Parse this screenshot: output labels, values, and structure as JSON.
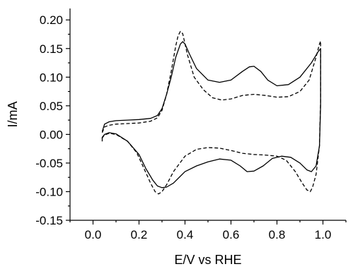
{
  "chart_data": {
    "type": "line",
    "title": "",
    "xlabel": "E/V vs RHE",
    "ylabel": "I/mA",
    "xlim": [
      -0.1,
      1.1
    ],
    "ylim": [
      -0.15,
      0.22
    ],
    "x_ticks": [
      0.0,
      0.2,
      0.4,
      0.6,
      0.8,
      1.0
    ],
    "x_tick_labels": [
      "0.0",
      "0.2",
      "0.4",
      "0.6",
      "0.8",
      "1.0"
    ],
    "y_ticks": [
      -0.15,
      -0.1,
      -0.05,
      0.0,
      0.05,
      0.1,
      0.15,
      0.2
    ],
    "y_tick_labels": [
      "-0.15",
      "-0.10",
      "-0.05",
      "0.00",
      "0.05",
      "0.10",
      "0.15",
      "0.20"
    ],
    "grid": false,
    "legend": "none",
    "series": [
      {
        "style": "solid",
        "color": "#000000",
        "x": [
          0.04,
          0.05,
          0.07,
          0.1,
          0.15,
          0.2,
          0.25,
          0.28,
          0.3,
          0.32,
          0.34,
          0.36,
          0.38,
          0.39,
          0.4,
          0.42,
          0.45,
          0.5,
          0.55,
          0.6,
          0.65,
          0.68,
          0.7,
          0.73,
          0.76,
          0.8,
          0.85,
          0.9,
          0.95,
          0.98,
          0.99,
          0.99,
          0.985,
          0.97,
          0.95,
          0.93,
          0.9,
          0.86,
          0.82,
          0.78,
          0.74,
          0.7,
          0.67,
          0.64,
          0.6,
          0.55,
          0.5,
          0.45,
          0.4,
          0.35,
          0.32,
          0.3,
          0.28,
          0.26,
          0.23,
          0.2,
          0.15,
          0.1,
          0.07,
          0.05,
          0.04,
          0.04
        ],
        "y": [
          0.005,
          0.018,
          0.022,
          0.024,
          0.025,
          0.026,
          0.028,
          0.033,
          0.045,
          0.07,
          0.1,
          0.135,
          0.158,
          0.162,
          0.158,
          0.14,
          0.115,
          0.095,
          0.091,
          0.095,
          0.11,
          0.118,
          0.119,
          0.11,
          0.095,
          0.085,
          0.087,
          0.1,
          0.125,
          0.145,
          0.15,
          0.05,
          -0.02,
          -0.055,
          -0.065,
          -0.062,
          -0.05,
          -0.04,
          -0.038,
          -0.042,
          -0.055,
          -0.064,
          -0.065,
          -0.055,
          -0.045,
          -0.043,
          -0.048,
          -0.055,
          -0.065,
          -0.085,
          -0.092,
          -0.093,
          -0.09,
          -0.08,
          -0.06,
          -0.035,
          -0.012,
          0.001,
          0.003,
          0.0,
          -0.005,
          -0.012
        ]
      },
      {
        "style": "dashed",
        "color": "#000000",
        "x": [
          0.04,
          0.05,
          0.07,
          0.1,
          0.15,
          0.2,
          0.25,
          0.28,
          0.3,
          0.32,
          0.34,
          0.36,
          0.37,
          0.38,
          0.39,
          0.41,
          0.44,
          0.48,
          0.52,
          0.56,
          0.6,
          0.65,
          0.7,
          0.75,
          0.8,
          0.85,
          0.9,
          0.94,
          0.97,
          0.985,
          0.99,
          0.99,
          0.985,
          0.97,
          0.955,
          0.945,
          0.93,
          0.91,
          0.88,
          0.84,
          0.8,
          0.75,
          0.7,
          0.65,
          0.6,
          0.55,
          0.5,
          0.45,
          0.4,
          0.35,
          0.32,
          0.3,
          0.285,
          0.27,
          0.25,
          0.22,
          0.19,
          0.15,
          0.1,
          0.07,
          0.05,
          0.04,
          0.04
        ],
        "y": [
          0.003,
          0.013,
          0.016,
          0.018,
          0.019,
          0.02,
          0.023,
          0.029,
          0.042,
          0.07,
          0.11,
          0.155,
          0.172,
          0.18,
          0.176,
          0.14,
          0.1,
          0.078,
          0.064,
          0.06,
          0.062,
          0.068,
          0.07,
          0.068,
          0.065,
          0.066,
          0.075,
          0.095,
          0.135,
          0.158,
          0.163,
          0.06,
          -0.02,
          -0.07,
          -0.092,
          -0.1,
          -0.097,
          -0.085,
          -0.065,
          -0.045,
          -0.038,
          -0.036,
          -0.035,
          -0.033,
          -0.028,
          -0.024,
          -0.023,
          -0.026,
          -0.038,
          -0.065,
          -0.088,
          -0.1,
          -0.104,
          -0.1,
          -0.085,
          -0.058,
          -0.032,
          -0.012,
          0.0,
          0.002,
          -0.001,
          -0.006,
          -0.012
        ]
      }
    ]
  }
}
